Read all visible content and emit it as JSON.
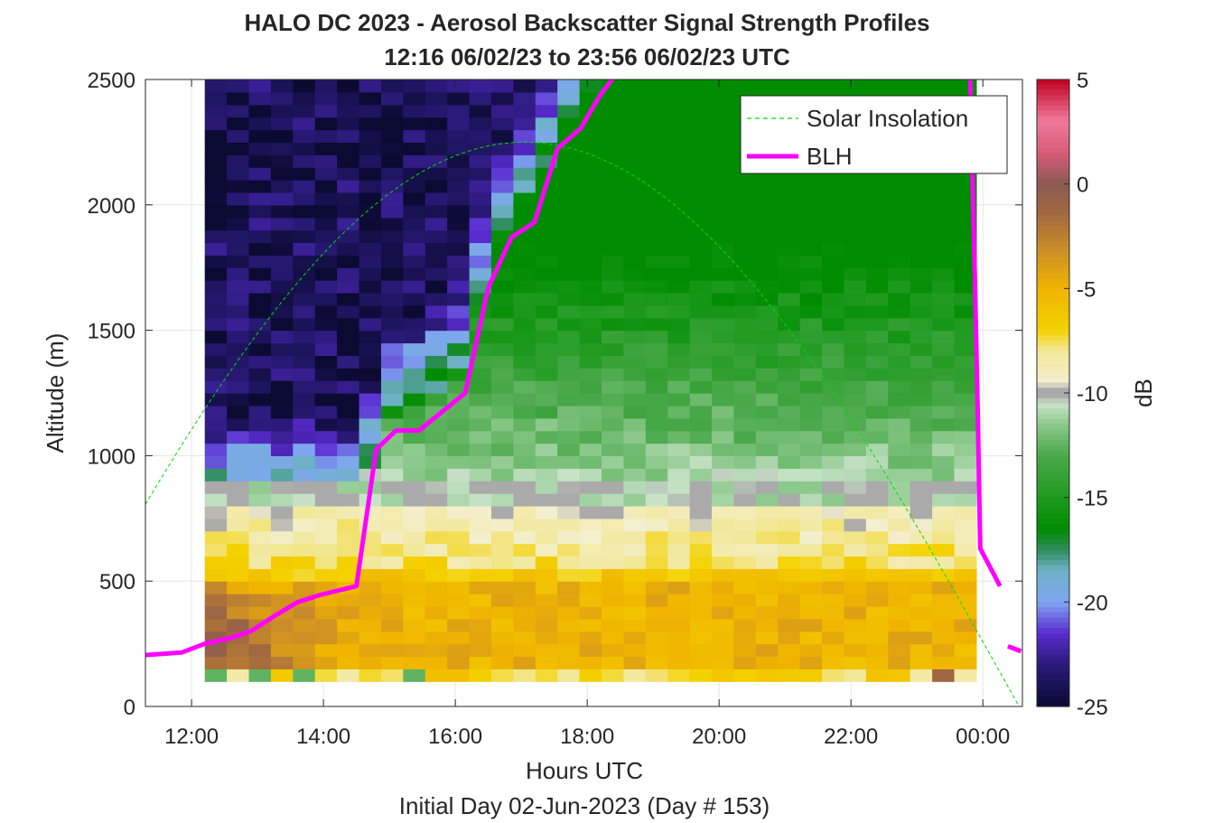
{
  "chart_data": {
    "type": "heatmap",
    "title": "HALO DC 2023 - Aerosol Backscatter Signal Strength Profiles",
    "subtitle": "12:16 06/02/23 to 23:56 06/02/23  UTC",
    "xlabel": "Hours UTC",
    "xlabel2": "Initial Day 02-Jun-2023 (Day # 153)",
    "ylabel": "Altitude (m)",
    "colorbar_label": "dB",
    "xlim": [
      11.3,
      24.6
    ],
    "ylim": [
      0,
      2500
    ],
    "x_ticks": [
      12,
      14,
      16,
      18,
      20,
      22,
      24
    ],
    "x_tick_labels": [
      "12:00",
      "14:00",
      "16:00",
      "18:00",
      "20:00",
      "22:00",
      "00:00"
    ],
    "y_ticks": [
      0,
      500,
      1000,
      1500,
      2000,
      2500
    ],
    "y_tick_labels": [
      "0",
      "500",
      "1000",
      "1500",
      "2000",
      "2500"
    ],
    "colorbar_range": [
      -25,
      5
    ],
    "colorbar_ticks": [
      5,
      0,
      -5,
      -10,
      -15,
      -20,
      -25
    ],
    "colorbar_tick_labels": [
      "5",
      "0",
      "-5",
      "-10",
      "-15",
      "-20",
      "-25"
    ],
    "grid": true,
    "legend_position": "top-right",
    "legend": [
      "Solar Insolation",
      "BLH"
    ],
    "heatmap": {
      "x_start_hours": 12.2,
      "x_end_hours": 23.9,
      "n_columns": 35,
      "y_bottom_m": 100,
      "y_top_m": 2500,
      "bin_height_m": 50,
      "units": "dB"
    },
    "series": [
      {
        "name": "BLH",
        "color": "#ff00ff",
        "x": [
          11.3,
          11.85,
          12.2,
          12.55,
          12.9,
          13.25,
          13.6,
          13.95,
          14.5,
          14.8,
          15.1,
          15.45,
          16.15,
          16.5,
          16.85,
          17.2,
          17.55,
          17.9,
          18.2,
          18.55
        ],
        "y": [
          205,
          215,
          250,
          270,
          300,
          360,
          415,
          445,
          480,
          1025,
          1100,
          1100,
          1250,
          1670,
          1870,
          1930,
          2225,
          2305,
          2440,
          2560
        ]
      },
      {
        "name": "BLH (evening)",
        "color": "#ff00ff",
        "x": [
          23.8,
          23.83,
          23.85,
          23.88,
          23.92,
          23.96,
          24.26
        ],
        "y": [
          2560,
          2310,
          2050,
          1700,
          1200,
          630,
          480
        ]
      },
      {
        "name": "BLH (end)",
        "color": "#ff00ff",
        "x": [
          24.38,
          24.58
        ],
        "y": [
          240,
          220
        ]
      },
      {
        "name": "Solar Insolation",
        "color": "#00dd00",
        "peak_hour": 17.05,
        "peak_altitude": 2250,
        "zero_hour": 24.55
      }
    ]
  }
}
